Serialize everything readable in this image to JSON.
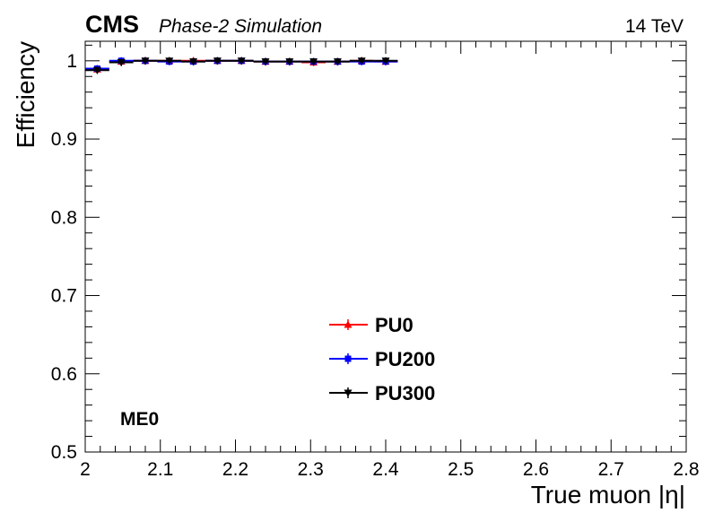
{
  "header": {
    "experiment": "CMS",
    "status": "Phase-2 Simulation",
    "energy": "14 TeV"
  },
  "annotation": "ME0",
  "chart_data": {
    "type": "scatter",
    "xlabel": "True muon |η|",
    "ylabel": "Efficiency",
    "xlim": [
      2.0,
      2.8
    ],
    "ylim": [
      0.5,
      1.025
    ],
    "xticks": [
      2,
      2.1,
      2.2,
      2.3,
      2.4,
      2.5,
      2.6,
      2.7,
      2.8
    ],
    "xtick_labels": [
      "2",
      "2.1",
      "2.2",
      "2.3",
      "2.4",
      "2.5",
      "2.6",
      "2.7",
      "2.8"
    ],
    "yticks": [
      0.5,
      0.6,
      0.7,
      0.8,
      0.9,
      1.0
    ],
    "ytick_labels": [
      "0.5",
      "0.6",
      "0.7",
      "0.8",
      "0.9",
      "1"
    ],
    "legend_position": "bottom-center",
    "x_bin_edges": [
      2.0,
      2.032,
      2.064,
      2.096,
      2.128,
      2.16,
      2.192,
      2.224,
      2.256,
      2.288,
      2.32,
      2.352,
      2.384,
      2.416
    ],
    "series": [
      {
        "name": "PU0",
        "color": "#ff0000",
        "marker": "triangle-up",
        "x": [
          2.016,
          2.048,
          2.08,
          2.112,
          2.144,
          2.176,
          2.208,
          2.24,
          2.272,
          2.304,
          2.336,
          2.368,
          2.4
        ],
        "y": [
          0.989,
          0.999,
          1.0,
          1.0,
          1.0,
          1.0,
          1.0,
          0.999,
          0.999,
          0.998,
          0.999,
          1.0,
          0.999
        ]
      },
      {
        "name": "PU200",
        "color": "#0000ff",
        "marker": "square",
        "x": [
          2.016,
          2.048,
          2.08,
          2.112,
          2.144,
          2.176,
          2.208,
          2.24,
          2.272,
          2.304,
          2.336,
          2.368,
          2.4
        ],
        "y": [
          0.99,
          1.0,
          1.0,
          0.999,
          0.999,
          1.0,
          1.0,
          0.999,
          0.999,
          0.999,
          0.999,
          0.999,
          0.999
        ]
      },
      {
        "name": "PU300",
        "color": "#000000",
        "marker": "triangle-down",
        "x": [
          2.016,
          2.048,
          2.08,
          2.112,
          2.144,
          2.176,
          2.208,
          2.24,
          2.272,
          2.304,
          2.336,
          2.368,
          2.4
        ],
        "y": [
          0.988,
          0.998,
          1.0,
          1.0,
          0.999,
          1.0,
          1.0,
          0.999,
          0.999,
          0.999,
          0.999,
          1.0,
          1.0
        ]
      }
    ]
  }
}
